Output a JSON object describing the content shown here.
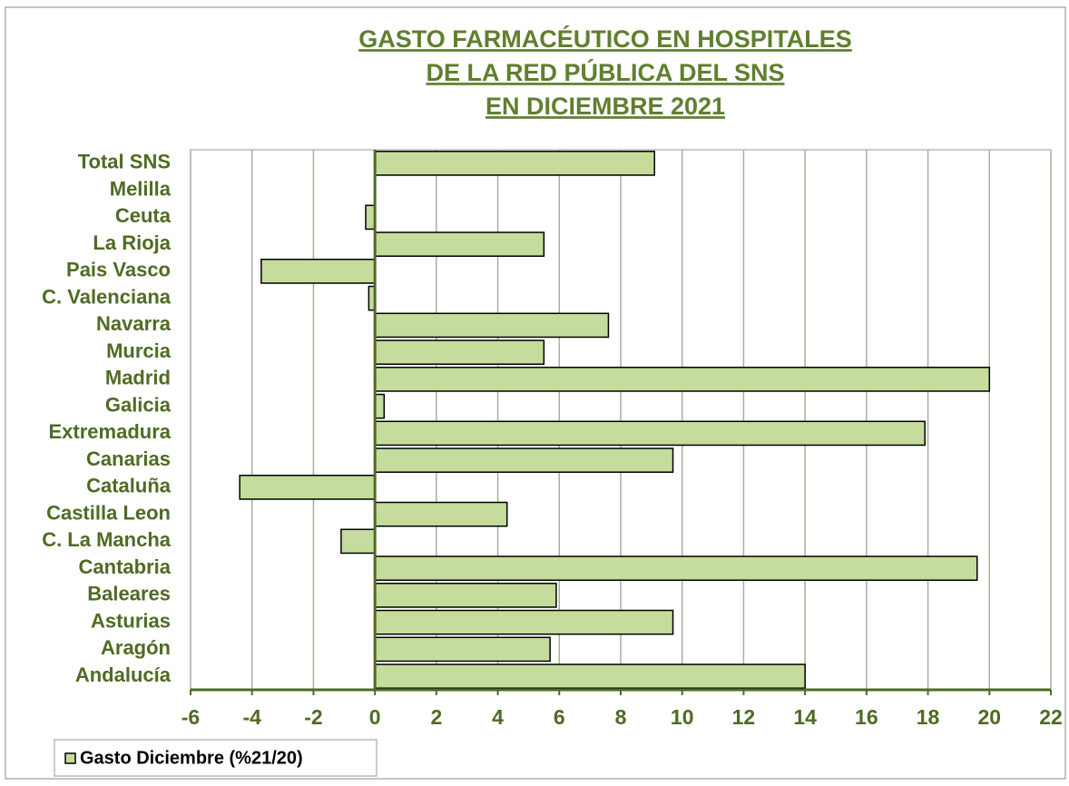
{
  "chart_data": {
    "type": "bar",
    "orientation": "horizontal",
    "title": [
      "GASTO FARMACÉUTICO EN HOSPITALES",
      "DE LA RED PÚBLICA DEL SNS",
      "EN DICIEMBRE 2021"
    ],
    "categories": [
      "Total SNS",
      "Melilla",
      "Ceuta",
      "La Rioja",
      "Pais Vasco",
      "C. Valenciana",
      "Navarra",
      "Murcia",
      "Madrid",
      "Galicia",
      "Extremadura",
      "Canarias",
      "Cataluña",
      "Castilla Leon",
      "C. La Mancha",
      "Cantabria",
      "Baleares",
      "Asturias",
      "Aragón",
      "Andalucía"
    ],
    "series": [
      {
        "name": "Gasto Diciembre (%21/20)",
        "color": "#c6dc9c",
        "values": [
          9.1,
          0,
          -0.3,
          5.5,
          -3.7,
          -0.2,
          7.6,
          5.5,
          20.0,
          0.3,
          17.9,
          9.7,
          -4.4,
          4.3,
          -1.1,
          19.6,
          5.9,
          9.7,
          5.7,
          14.0
        ]
      }
    ],
    "xlim": [
      -6,
      22
    ],
    "xticks": [
      -6,
      -4,
      -2,
      0,
      2,
      4,
      6,
      8,
      10,
      12,
      14,
      16,
      18,
      20,
      22
    ],
    "grid": true,
    "legend": "bottom-left"
  }
}
